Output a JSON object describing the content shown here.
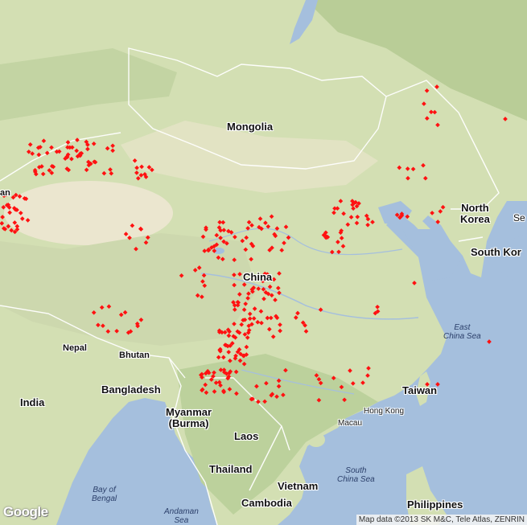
{
  "map": {
    "labels": {
      "mongolia": "Mongolia",
      "china": "China",
      "north_korea": "North\nKorea",
      "south_korea": "South Kor",
      "nepal": "Nepal",
      "bhutan": "Bhutan",
      "india": "India",
      "bangladesh": "Bangladesh",
      "myanmar": "Myanmar\n(Burma)",
      "laos": "Laos",
      "thailand": "Thailand",
      "vietnam": "Vietnam",
      "cambodia": "Cambodia",
      "taiwan": "Taiwan",
      "philippines": "Philippines",
      "hong_kong": "Hong Kong",
      "macau": "Macau",
      "east_china_sea": "East\nChina Sea",
      "south_china_sea": "South\nChina Sea",
      "bay_of_bengal": "Bay of\nBengal",
      "andaman_sea": "Andaman\nSea",
      "edge_se": "Se",
      "edge_an": "an"
    },
    "google_logo": "Google",
    "attribution": "Map data ©2013 SK M&C, Tele Atlas, ZENRIN",
    "colors": {
      "marker": "#ff1111",
      "water": "#a5bfdd",
      "land": "#d6e3b8",
      "desert": "#ece7d2"
    }
  }
}
